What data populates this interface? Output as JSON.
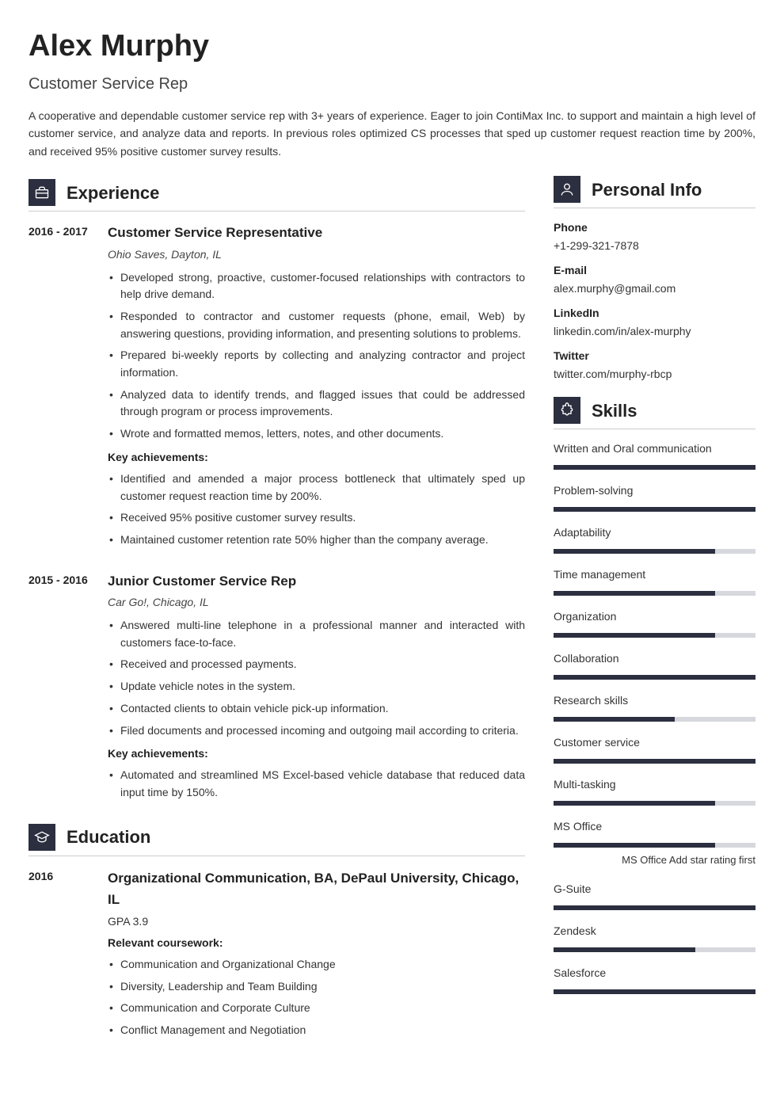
{
  "colors": {
    "accent": "#2b2f3f",
    "bar_bg": "#d6d8dd",
    "text": "#333333",
    "heading": "#222222",
    "divider": "#cccccc",
    "background": "#ffffff"
  },
  "header": {
    "name": "Alex Murphy",
    "title": "Customer Service Rep",
    "summary": "A cooperative and dependable customer service rep with 3+ years of experience. Eager to join ContiMax Inc. to support and maintain a high level of customer service, and analyze data and reports. In previous roles optimized CS processes that sped up customer request reaction time by 200%, and received 95% positive customer survey results."
  },
  "sections": {
    "experience": {
      "title": "Experience",
      "entries": [
        {
          "dates": "2016 - 2017",
          "title": "Customer Service Representative",
          "sub": "Ohio Saves, Dayton, IL",
          "bullets": [
            "Developed strong, proactive, customer-focused relationships with contractors to help drive demand.",
            "Responded to contractor and customer requests (phone, email, Web) by answering questions, providing information, and presenting solutions to problems.",
            "Prepared bi-weekly reports by collecting and analyzing contractor and project information.",
            "Analyzed data to identify trends, and flagged issues that could be addressed through program or process improvements.",
            "Wrote and formatted memos, letters, notes, and other documents."
          ],
          "ach_label": "Key achievements:",
          "achievements": [
            "Identified and amended a major process bottleneck that ultimately sped up customer request reaction time by 200%.",
            "Received 95% positive customer survey results.",
            "Maintained customer retention rate 50% higher than the company average."
          ]
        },
        {
          "dates": "2015 - 2016",
          "title": "Junior Customer Service Rep",
          "sub": "Car Go!, Chicago, IL",
          "bullets": [
            "Answered multi-line telephone in a professional manner and interacted with customers face-to-face.",
            "Received and processed payments.",
            "Update vehicle notes in the system.",
            "Contacted clients to obtain vehicle pick-up information.",
            "Filed documents and processed incoming and outgoing mail according to criteria."
          ],
          "ach_label": "Key achievements:",
          "achievements": [
            "Automated and streamlined MS Excel-based vehicle database that reduced data input time by 150%."
          ]
        }
      ]
    },
    "education": {
      "title": "Education",
      "entries": [
        {
          "dates": "2016",
          "title": "Organizational Communication, BA, DePaul University, Chicago, IL",
          "sub": "GPA 3.9",
          "cw_label": "Relevant coursework:",
          "coursework": [
            "Communication and Organizational Change",
            "Diversity, Leadership and Team Building",
            "Communication and Corporate Culture",
            "Conflict Management and Negotiation"
          ]
        }
      ]
    },
    "personal": {
      "title": "Personal Info",
      "items": [
        {
          "label": "Phone",
          "value": "+1-299-321-7878"
        },
        {
          "label": "E-mail",
          "value": "alex.murphy@gmail.com"
        },
        {
          "label": "LinkedIn",
          "value": "linkedin.com/in/alex-murphy"
        },
        {
          "label": "Twitter",
          "value": "twitter.com/murphy-rbcp"
        }
      ]
    },
    "skills": {
      "title": "Skills",
      "items": [
        {
          "name": "Written and Oral communication",
          "pct": 100
        },
        {
          "name": "Problem-solving",
          "pct": 100
        },
        {
          "name": "Adaptability",
          "pct": 80
        },
        {
          "name": "Time management",
          "pct": 80
        },
        {
          "name": "Organization",
          "pct": 80
        },
        {
          "name": "Collaboration",
          "pct": 100
        },
        {
          "name": "Research skills",
          "pct": 60
        },
        {
          "name": "Customer service",
          "pct": 100
        },
        {
          "name": "Multi-tasking",
          "pct": 80
        },
        {
          "name": "MS Office",
          "pct": 80,
          "note": "MS Office Add star rating first"
        },
        {
          "name": "G-Suite",
          "pct": 100
        },
        {
          "name": "Zendesk",
          "pct": 70
        },
        {
          "name": "Salesforce",
          "pct": 100
        }
      ]
    }
  }
}
